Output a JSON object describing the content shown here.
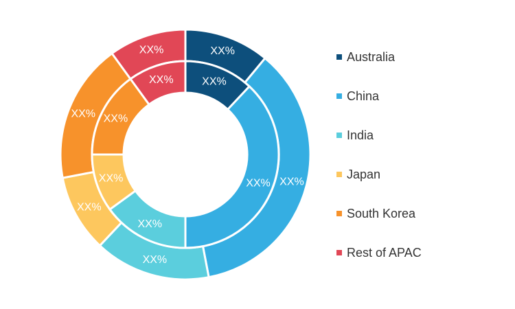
{
  "chart_data": {
    "type": "pie",
    "variant": "double-donut",
    "legend_position": "right",
    "categories": [
      "Australia",
      "China",
      "India",
      "Japan",
      "South Korea",
      "Rest of APAC"
    ],
    "colors": [
      "#0d4f7c",
      "#35aee2",
      "#5bcedd",
      "#fdc75e",
      "#f7922b",
      "#e14756"
    ],
    "series": [
      {
        "ring": "outer",
        "values": [
          11,
          36,
          15,
          10,
          18,
          10
        ],
        "labels": [
          "XX%",
          "XX%",
          "XX%",
          "XX%",
          "XX%",
          "XX%"
        ]
      },
      {
        "ring": "inner",
        "values": [
          12,
          38,
          15,
          10,
          15,
          10
        ],
        "labels": [
          "XX%",
          "XX%",
          "XX%",
          "XX%",
          "XX%",
          "XX%"
        ]
      }
    ]
  }
}
